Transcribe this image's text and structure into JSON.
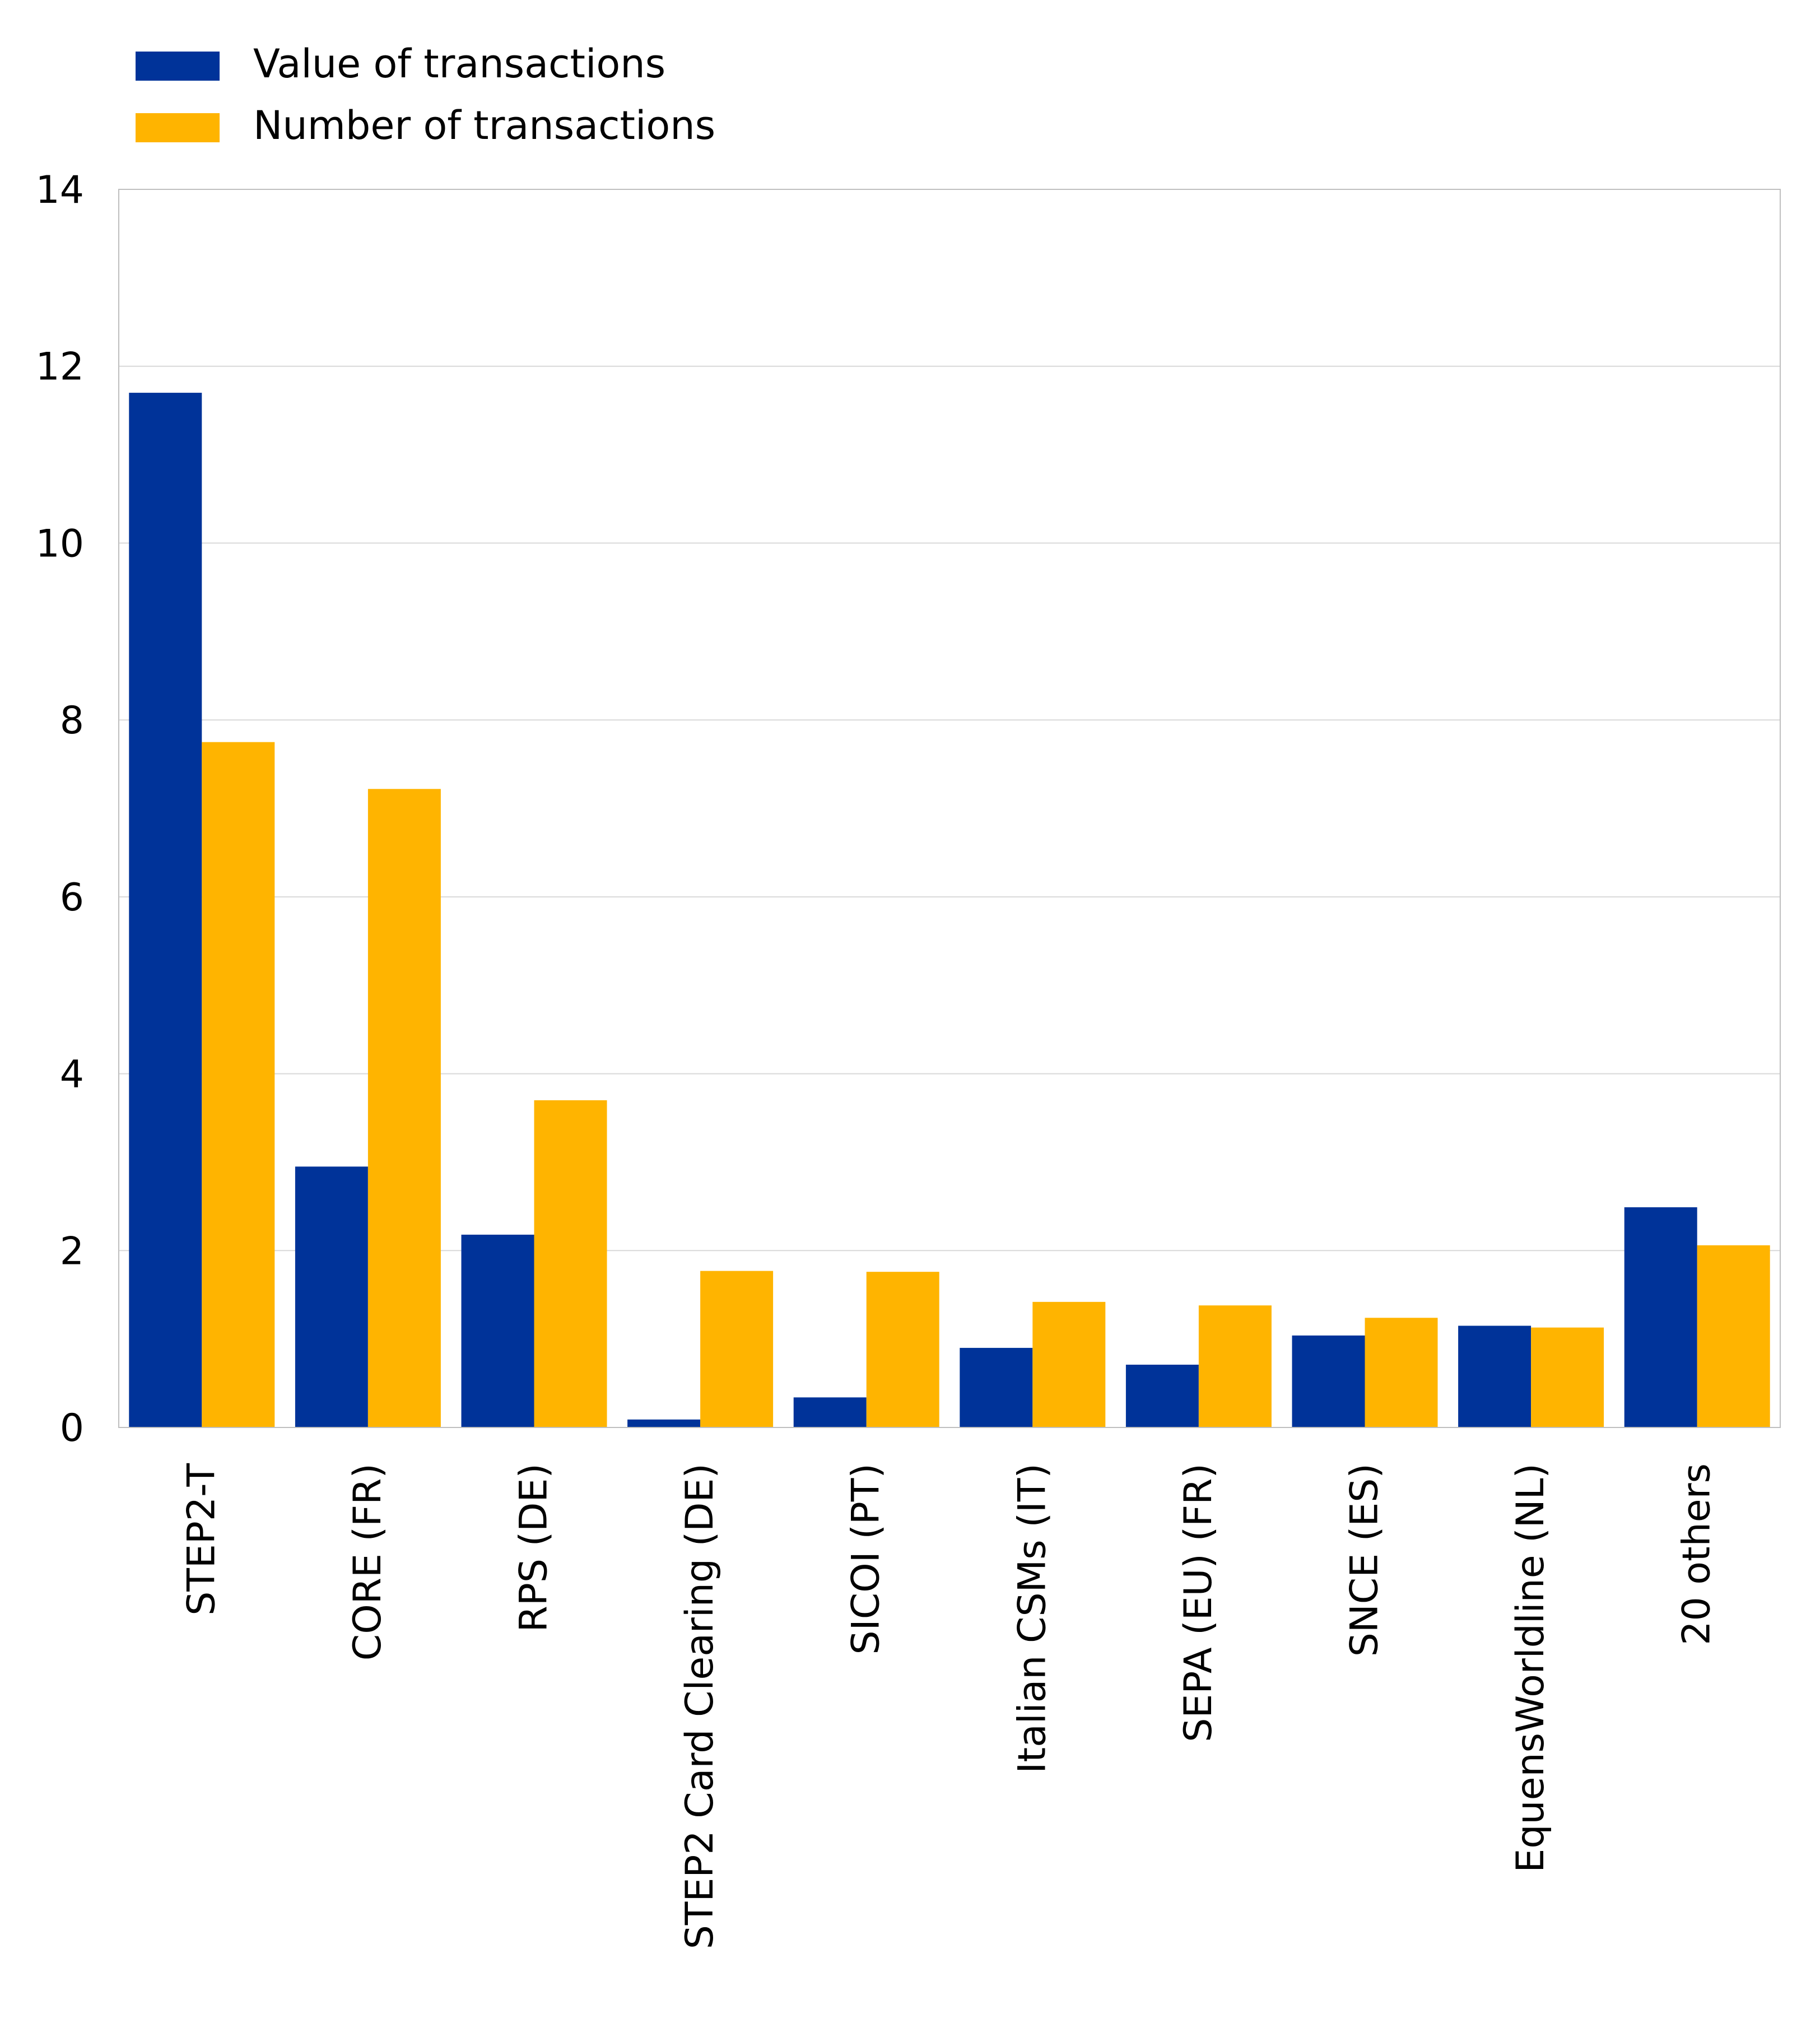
{
  "chart_data": {
    "type": "bar",
    "title": "",
    "xlabel": "",
    "ylabel": "",
    "ylim": [
      0,
      14
    ],
    "yticks": [
      0,
      2,
      4,
      6,
      8,
      10,
      12,
      14
    ],
    "grid": true,
    "legend_position": "top-left",
    "categories": [
      "STEP2-T",
      "CORE (FR)",
      "RPS (DE)",
      "STEP2 Card Clearing (DE)",
      "SICOI (PT)",
      "Italian CSMs (IT)",
      "SEPA (EU) (FR)",
      "SNCE (ES)",
      "EquensWorldline (NL)",
      "20 others"
    ],
    "series": [
      {
        "name": "Value of transactions",
        "color": "#003399",
        "values": [
          11.7,
          2.95,
          2.18,
          0.09,
          0.34,
          0.9,
          0.71,
          1.04,
          1.15,
          2.49
        ]
      },
      {
        "name": "Number of transactions",
        "color": "#FFB400",
        "values": [
          7.75,
          7.22,
          3.7,
          1.77,
          1.76,
          1.42,
          1.38,
          1.24,
          1.13,
          2.06
        ]
      }
    ]
  }
}
